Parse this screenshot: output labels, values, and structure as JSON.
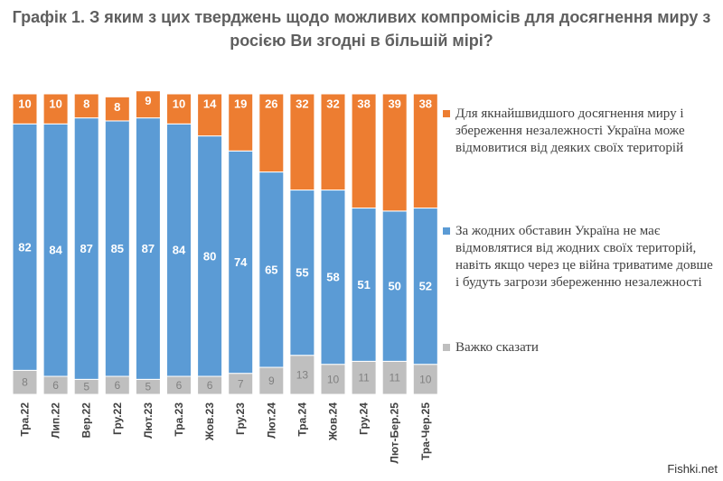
{
  "chart_data": {
    "type": "bar",
    "stacked": true,
    "percent": true,
    "title": "Графік 1. З яким з цих тверджень щодо можливих компромісів для досягнення миру з росією Ви згодні в більшій мірі?",
    "categories": [
      "Тра.22",
      "Лип.22",
      "Вер.22",
      "Гру.22",
      "Лют.23",
      "Тра.23",
      "Жов.23",
      "Гру.23",
      "Лют.24",
      "Тра.24",
      "Жов.24",
      "Гру.24",
      "Лют-Бер.25",
      "Тра-Чер.25"
    ],
    "series": [
      {
        "name": "Важко сказати",
        "color": "#bfbfbf",
        "values": [
          8,
          6,
          5,
          6,
          5,
          6,
          6,
          7,
          9,
          13,
          10,
          11,
          11,
          10
        ]
      },
      {
        "name": "За жодних обставин Україна не має відмовлятися від жодних своїх територій, навіть якщо через це війна триватиме довше і будуть загрози збереженню незалежності",
        "color": "#5b9bd5",
        "values": [
          82,
          84,
          87,
          85,
          87,
          84,
          80,
          74,
          65,
          55,
          58,
          51,
          50,
          52
        ]
      },
      {
        "name": "Для якнайшвидшого досягнення миру і збереження незалежності Україна може відмовитися від деяких своїх територій",
        "color": "#ed7d31",
        "values": [
          10,
          10,
          8,
          8,
          9,
          10,
          14,
          19,
          26,
          32,
          32,
          38,
          39,
          38
        ]
      }
    ],
    "ylim": [
      0,
      100
    ],
    "legend_position": "right"
  },
  "legend": [
    {
      "label": "Для якнайшвидшого досягнення миру і збереження незалежності Україна може відмовитися від деяких своїх територій",
      "color": "#ed7d31"
    },
    {
      "label": "За жодних обставин Україна не має відмовлятися від жодних своїх територій, навіть якщо через це війна триватиме довше і будуть загрози збереженню незалежності",
      "color": "#5b9bd5"
    },
    {
      "label": "Важко сказати",
      "color": "#bfbfbf"
    }
  ],
  "watermark": "Fishki.net"
}
